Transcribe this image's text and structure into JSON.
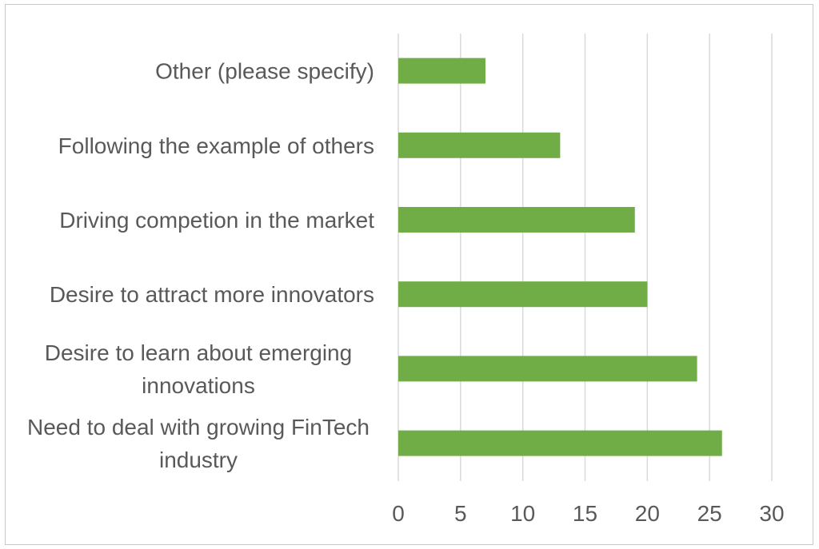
{
  "chart_data": {
    "type": "bar",
    "orientation": "horizontal",
    "categories": [
      [
        "Other (please specify)"
      ],
      [
        "Following the example of others"
      ],
      [
        "Driving competion in the market"
      ],
      [
        "Desire to attract more innovators"
      ],
      [
        "Desire to learn about emerging",
        "innovations"
      ],
      [
        "Need to deal with growing FinTech",
        "industry"
      ]
    ],
    "values": [
      7,
      13,
      19,
      20,
      24,
      26
    ],
    "xlim": [
      0,
      30
    ],
    "xticks": [
      "0",
      "5",
      "10",
      "15",
      "20",
      "25",
      "30"
    ],
    "grid": true,
    "legend": "none",
    "colors": {
      "bar": "#70ad47",
      "grid": "#d9d9d9",
      "text": "#595959"
    }
  }
}
